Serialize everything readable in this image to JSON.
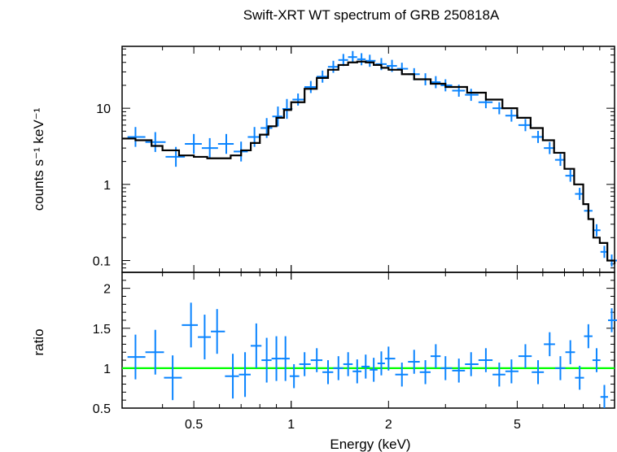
{
  "chart_data": {
    "type": "line",
    "title": "Swift-XRT WT spectrum of GRB 250818A",
    "xlabel": "Energy (keV)",
    "x_scale": "log",
    "xlim": [
      0.3,
      10
    ],
    "x_ticks": [
      0.5,
      1,
      2,
      5
    ],
    "x_tick_labels": [
      "0.5",
      "1",
      "2",
      "5"
    ],
    "colors": {
      "data": "#0a84ff",
      "model": "#000000",
      "unity": "#00ff00"
    },
    "panels": [
      {
        "name": "spectrum",
        "ylabel": "counts s⁻¹ keV⁻¹",
        "y_scale": "log",
        "ylim": [
          0.07,
          65
        ],
        "y_ticks": [
          0.1,
          1,
          10
        ],
        "y_tick_labels": [
          "0.1",
          "1",
          "10"
        ],
        "series": [
          {
            "kind": "model",
            "x": [
              0.3,
              0.33,
              0.37,
              0.4,
              0.45,
              0.5,
              0.55,
              0.6,
              0.65,
              0.7,
              0.75,
              0.8,
              0.85,
              0.9,
              0.95,
              1.0,
              1.1,
              1.2,
              1.3,
              1.4,
              1.5,
              1.6,
              1.7,
              1.8,
              1.9,
              2.0,
              2.2,
              2.4,
              2.7,
              3.0,
              3.5,
              4.0,
              4.5,
              5.0,
              5.5,
              6.0,
              6.5,
              7.0,
              7.5,
              8.0,
              8.3,
              8.6,
              9.0,
              9.5,
              10.0
            ],
            "y": [
              4.0,
              3.8,
              3.2,
              2.8,
              2.4,
              2.3,
              2.2,
              2.2,
              2.4,
              2.8,
              3.5,
              4.5,
              5.8,
              7.5,
              9.5,
              12.0,
              18.0,
              25.0,
              32.0,
              37.0,
              40.0,
              41.0,
              40.0,
              37.0,
              34.0,
              32.0,
              28.0,
              24.0,
              21.0,
              19.0,
              16.0,
              13.0,
              10.0,
              7.5,
              5.5,
              3.8,
              2.6,
              1.6,
              1.0,
              0.55,
              0.35,
              0.2,
              0.17,
              0.1,
              0.09
            ]
          },
          {
            "kind": "data",
            "x": [
              0.33,
              0.38,
              0.44,
              0.5,
              0.56,
              0.63,
              0.7,
              0.77,
              0.84,
              0.91,
              0.97,
              1.05,
              1.15,
              1.25,
              1.35,
              1.45,
              1.55,
              1.65,
              1.75,
              1.9,
              2.05,
              2.2,
              2.4,
              2.6,
              2.8,
              3.0,
              3.3,
              3.6,
              4.0,
              4.4,
              4.8,
              5.3,
              5.8,
              6.3,
              6.8,
              7.3,
              7.8,
              8.3,
              8.8,
              9.3,
              9.8
            ],
            "y": [
              4.2,
              3.6,
              2.3,
              3.4,
              3.0,
              3.4,
              2.7,
              4.2,
              5.5,
              7.8,
              9.8,
              13.0,
              19.0,
              26.0,
              35.0,
              43.0,
              47.0,
              44.0,
              42.0,
              38.0,
              36.0,
              33.0,
              28.0,
              24.0,
              22.0,
              20.0,
              17.0,
              15.0,
              12.0,
              10.0,
              8.0,
              6.0,
              4.2,
              3.0,
              2.1,
              1.3,
              0.75,
              0.45,
              0.25,
              0.13,
              0.1
            ]
          }
        ]
      },
      {
        "name": "ratio",
        "ylabel": "ratio",
        "y_scale": "linear",
        "ylim": [
          0.5,
          2.2
        ],
        "y_ticks": [
          0.5,
          1,
          1.5,
          2
        ],
        "y_tick_labels": [
          "0.5",
          "1",
          "1.5",
          "2"
        ],
        "reference_line": 1,
        "series": [
          {
            "kind": "data",
            "x": [
              0.33,
              0.38,
              0.43,
              0.49,
              0.54,
              0.59,
              0.66,
              0.72,
              0.78,
              0.84,
              0.9,
              0.96,
              1.02,
              1.1,
              1.2,
              1.3,
              1.4,
              1.5,
              1.6,
              1.7,
              1.8,
              1.9,
              2.0,
              2.2,
              2.4,
              2.6,
              2.8,
              3.0,
              3.3,
              3.6,
              4.0,
              4.4,
              4.8,
              5.3,
              5.8,
              6.3,
              6.8,
              7.3,
              7.8,
              8.3,
              8.8,
              9.3,
              9.8
            ],
            "y": [
              1.14,
              1.2,
              0.88,
              1.54,
              1.39,
              1.46,
              0.9,
              0.92,
              1.28,
              1.1,
              1.12,
              1.12,
              0.9,
              1.05,
              1.1,
              0.95,
              1.0,
              1.05,
              0.96,
              1.02,
              0.98,
              1.06,
              1.12,
              0.92,
              1.08,
              0.95,
              1.15,
              1.0,
              0.97,
              1.05,
              1.1,
              0.92,
              0.96,
              1.15,
              0.95,
              1.3,
              1.0,
              1.2,
              0.88,
              1.4,
              1.1,
              0.64,
              1.6
            ]
          }
        ]
      }
    ]
  }
}
